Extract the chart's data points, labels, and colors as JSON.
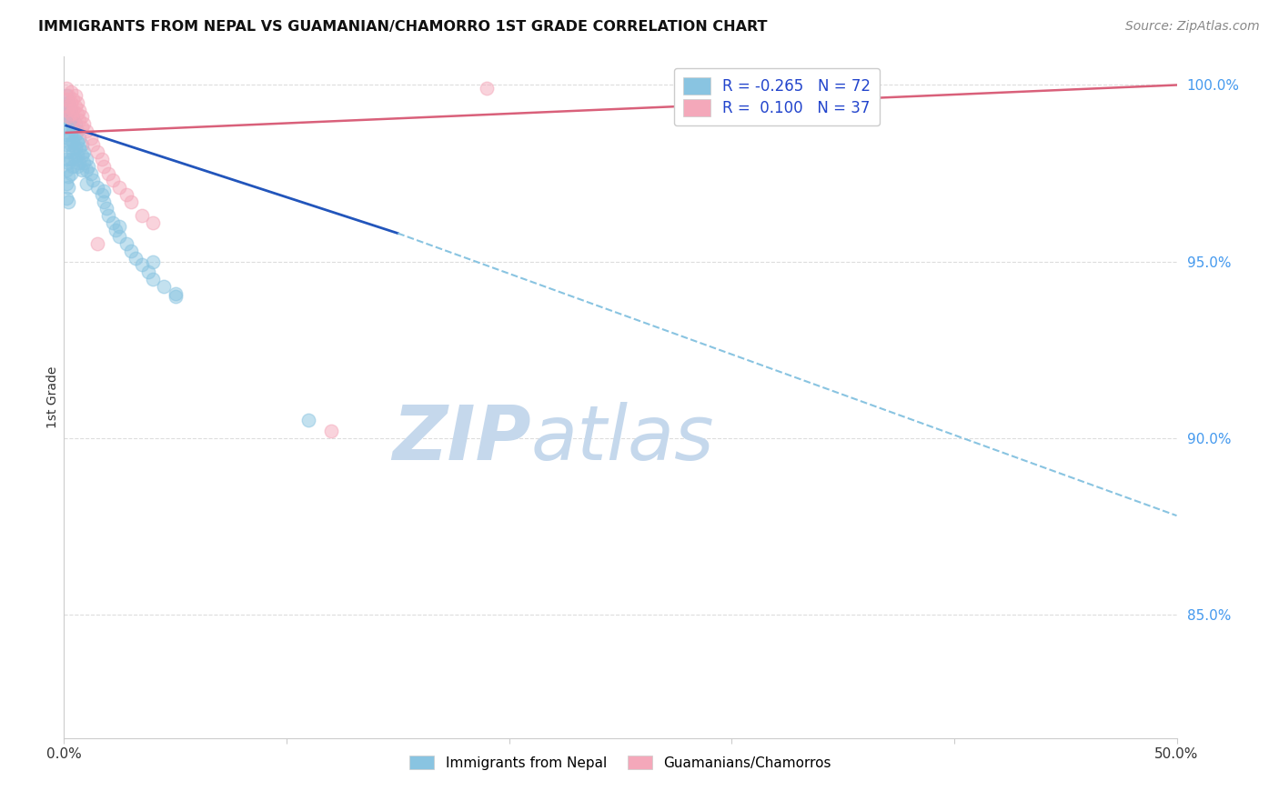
{
  "title": "IMMIGRANTS FROM NEPAL VS GUAMANIAN/CHAMORRO 1ST GRADE CORRELATION CHART",
  "source": "Source: ZipAtlas.com",
  "ylabel": "1st Grade",
  "ytick_labels": [
    "100.0%",
    "95.0%",
    "90.0%",
    "85.0%"
  ],
  "ytick_values": [
    1.0,
    0.95,
    0.9,
    0.85
  ],
  "xlim": [
    0.0,
    0.5
  ],
  "ylim": [
    0.815,
    1.008
  ],
  "color_blue": "#89c4e1",
  "color_pink": "#f4a8ba",
  "trendline_blue_solid_color": "#2255bb",
  "trendline_pink_solid_color": "#d9607a",
  "trendline_blue_dashed_color": "#89c4e1",
  "watermark_zip_color": "#c5d8ec",
  "watermark_atlas_color": "#c5d8ec",
  "background_color": "#ffffff",
  "grid_color": "#dddddd",
  "blue_scatter_x": [
    0.001,
    0.001,
    0.001,
    0.001,
    0.001,
    0.001,
    0.001,
    0.001,
    0.001,
    0.002,
    0.002,
    0.002,
    0.002,
    0.002,
    0.002,
    0.002,
    0.002,
    0.002,
    0.003,
    0.003,
    0.003,
    0.003,
    0.003,
    0.003,
    0.004,
    0.004,
    0.004,
    0.004,
    0.004,
    0.005,
    0.005,
    0.005,
    0.005,
    0.006,
    0.006,
    0.006,
    0.006,
    0.007,
    0.007,
    0.007,
    0.008,
    0.008,
    0.008,
    0.009,
    0.009,
    0.01,
    0.01,
    0.01,
    0.011,
    0.012,
    0.013,
    0.015,
    0.017,
    0.018,
    0.019,
    0.02,
    0.022,
    0.023,
    0.025,
    0.028,
    0.03,
    0.032,
    0.035,
    0.038,
    0.04,
    0.045,
    0.05,
    0.018,
    0.025,
    0.04,
    0.05,
    0.11
  ],
  "blue_scatter_y": [
    0.997,
    0.994,
    0.99,
    0.986,
    0.983,
    0.979,
    0.976,
    0.972,
    0.968,
    0.995,
    0.992,
    0.988,
    0.985,
    0.981,
    0.978,
    0.974,
    0.971,
    0.967,
    0.993,
    0.99,
    0.986,
    0.983,
    0.979,
    0.975,
    0.991,
    0.988,
    0.984,
    0.981,
    0.977,
    0.989,
    0.986,
    0.982,
    0.979,
    0.987,
    0.984,
    0.98,
    0.977,
    0.985,
    0.982,
    0.978,
    0.983,
    0.98,
    0.976,
    0.981,
    0.978,
    0.979,
    0.976,
    0.972,
    0.977,
    0.975,
    0.973,
    0.971,
    0.969,
    0.967,
    0.965,
    0.963,
    0.961,
    0.959,
    0.957,
    0.955,
    0.953,
    0.951,
    0.949,
    0.947,
    0.945,
    0.943,
    0.941,
    0.97,
    0.96,
    0.95,
    0.94,
    0.905
  ],
  "pink_scatter_x": [
    0.001,
    0.001,
    0.001,
    0.002,
    0.002,
    0.002,
    0.003,
    0.003,
    0.003,
    0.004,
    0.004,
    0.004,
    0.005,
    0.005,
    0.006,
    0.006,
    0.007,
    0.007,
    0.008,
    0.008,
    0.009,
    0.01,
    0.012,
    0.013,
    0.015,
    0.015,
    0.017,
    0.018,
    0.02,
    0.022,
    0.025,
    0.028,
    0.03,
    0.035,
    0.19,
    0.04,
    0.12
  ],
  "pink_scatter_y": [
    0.999,
    0.996,
    0.993,
    0.997,
    0.994,
    0.991,
    0.998,
    0.995,
    0.992,
    0.996,
    0.993,
    0.99,
    0.997,
    0.994,
    0.995,
    0.992,
    0.993,
    0.99,
    0.991,
    0.988,
    0.989,
    0.987,
    0.985,
    0.983,
    0.981,
    0.955,
    0.979,
    0.977,
    0.975,
    0.973,
    0.971,
    0.969,
    0.967,
    0.963,
    0.999,
    0.961,
    0.902
  ],
  "trendline_blue_solid_x0": 0.001,
  "trendline_blue_solid_x1": 0.15,
  "trendline_blue_solid_y0": 0.9885,
  "trendline_blue_solid_y1": 0.958,
  "trendline_blue_dashed_x0": 0.15,
  "trendline_blue_dashed_x1": 0.5,
  "trendline_blue_dashed_y0": 0.958,
  "trendline_blue_dashed_y1": 0.878,
  "trendline_pink_x0": 0.001,
  "trendline_pink_x1": 0.5,
  "trendline_pink_y0": 0.9865,
  "trendline_pink_y1": 1.0
}
